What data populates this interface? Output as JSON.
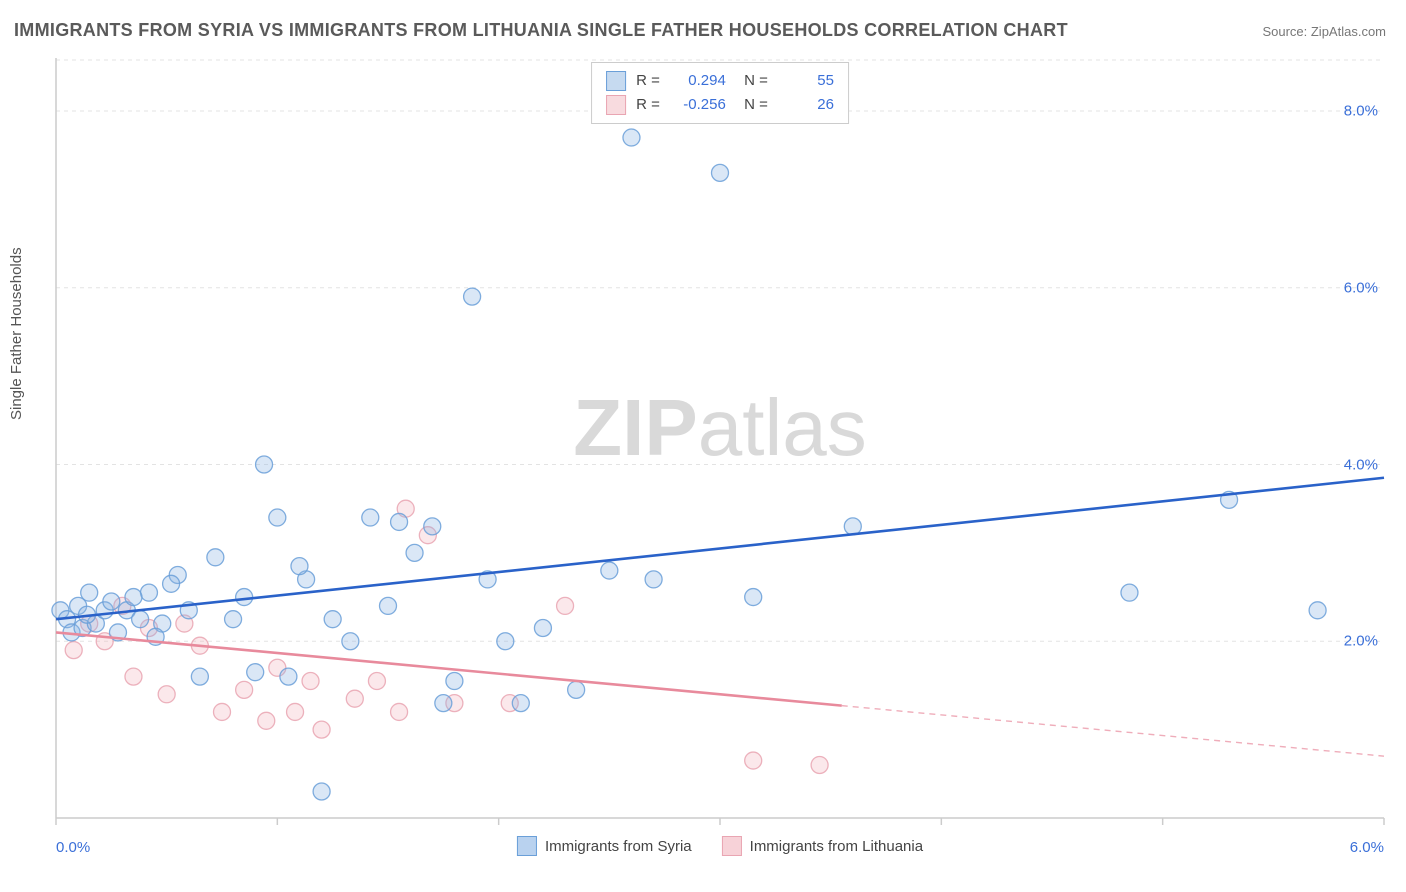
{
  "title": "IMMIGRANTS FROM SYRIA VS IMMIGRANTS FROM LITHUANIA SINGLE FATHER HOUSEHOLDS CORRELATION CHART",
  "source": "Source: ZipAtlas.com",
  "watermark_bold": "ZIP",
  "watermark_light": "atlas",
  "ylabel": "Single Father Households",
  "chart": {
    "type": "scatter_with_regression",
    "background_color": "#ffffff",
    "grid_color": "#e3e3e3",
    "axis_color": "#cccccc",
    "tick_color": "#cccccc",
    "label_color": "#3a6fd8",
    "label_fontsize": 15,
    "xlim": [
      0.0,
      6.0
    ],
    "ylim": [
      0.0,
      8.6
    ],
    "xticks": [
      0.0,
      1.0,
      2.0,
      3.0,
      4.0,
      5.0,
      6.0
    ],
    "xtick_labels": [
      "0.0%",
      "",
      "",
      "",
      "",
      "",
      "6.0%"
    ],
    "yticks": [
      2.0,
      4.0,
      6.0,
      8.0
    ],
    "ytick_labels": [
      "2.0%",
      "4.0%",
      "6.0%",
      "8.0%"
    ],
    "marker_radius": 8.5,
    "marker_fill_opacity": 0.32,
    "marker_stroke_opacity": 0.85,
    "line_width": 2.6,
    "series": [
      {
        "name": "Immigrants from Syria",
        "color": "#8db5e2",
        "line_color": "#2a62c9",
        "stroke_color": "#6a9fd8",
        "R": "0.294",
        "N": "55",
        "points": [
          [
            0.02,
            2.35
          ],
          [
            0.05,
            2.25
          ],
          [
            0.07,
            2.1
          ],
          [
            0.1,
            2.4
          ],
          [
            0.12,
            2.15
          ],
          [
            0.15,
            2.55
          ],
          [
            0.18,
            2.2
          ],
          [
            0.22,
            2.35
          ],
          [
            0.25,
            2.45
          ],
          [
            0.28,
            2.1
          ],
          [
            0.32,
            2.35
          ],
          [
            0.38,
            2.25
          ],
          [
            0.42,
            2.55
          ],
          [
            0.48,
            2.2
          ],
          [
            0.55,
            2.75
          ],
          [
            0.6,
            2.35
          ],
          [
            0.65,
            1.6
          ],
          [
            0.72,
            2.95
          ],
          [
            0.8,
            2.25
          ],
          [
            0.85,
            2.5
          ],
          [
            0.94,
            4.0
          ],
          [
            1.0,
            3.4
          ],
          [
            1.05,
            1.6
          ],
          [
            1.13,
            2.7
          ],
          [
            1.2,
            0.3
          ],
          [
            1.25,
            2.25
          ],
          [
            1.33,
            2.0
          ],
          [
            1.42,
            3.4
          ],
          [
            1.5,
            2.4
          ],
          [
            1.62,
            3.0
          ],
          [
            1.7,
            3.3
          ],
          [
            1.75,
            1.3
          ],
          [
            1.8,
            1.55
          ],
          [
            1.88,
            5.9
          ],
          [
            1.95,
            2.7
          ],
          [
            2.03,
            2.0
          ],
          [
            2.1,
            1.3
          ],
          [
            2.2,
            2.15
          ],
          [
            2.35,
            1.45
          ],
          [
            2.5,
            2.8
          ],
          [
            2.6,
            7.7
          ],
          [
            2.7,
            2.7
          ],
          [
            3.0,
            7.3
          ],
          [
            3.15,
            2.5
          ],
          [
            3.6,
            3.3
          ],
          [
            4.85,
            2.55
          ],
          [
            5.3,
            3.6
          ],
          [
            5.7,
            2.35
          ],
          [
            0.45,
            2.05
          ],
          [
            0.52,
            2.65
          ],
          [
            0.9,
            1.65
          ],
          [
            1.55,
            3.35
          ],
          [
            1.1,
            2.85
          ],
          [
            0.35,
            2.5
          ],
          [
            0.14,
            2.3
          ]
        ],
        "regression": {
          "x1": 0.0,
          "y1": 2.25,
          "x2": 6.0,
          "y2": 3.85,
          "solid_until": 6.0
        }
      },
      {
        "name": "Immigrants from Lithuania",
        "color": "#f2b8c0",
        "line_color": "#e88a9c",
        "stroke_color": "#e9a5b2",
        "R": "-0.256",
        "N": "26",
        "points": [
          [
            0.08,
            1.9
          ],
          [
            0.15,
            2.2
          ],
          [
            0.22,
            2.0
          ],
          [
            0.35,
            1.6
          ],
          [
            0.42,
            2.15
          ],
          [
            0.5,
            1.4
          ],
          [
            0.58,
            2.2
          ],
          [
            0.65,
            1.95
          ],
          [
            0.75,
            1.2
          ],
          [
            0.85,
            1.45
          ],
          [
            0.95,
            1.1
          ],
          [
            1.0,
            1.7
          ],
          [
            1.08,
            1.2
          ],
          [
            1.15,
            1.55
          ],
          [
            1.2,
            1.0
          ],
          [
            1.35,
            1.35
          ],
          [
            1.45,
            1.55
          ],
          [
            1.55,
            1.2
          ],
          [
            1.58,
            3.5
          ],
          [
            1.68,
            3.2
          ],
          [
            1.8,
            1.3
          ],
          [
            2.05,
            1.3
          ],
          [
            2.3,
            2.4
          ],
          [
            3.15,
            0.65
          ],
          [
            3.45,
            0.6
          ],
          [
            0.3,
            2.4
          ]
        ],
        "regression": {
          "x1": 0.0,
          "y1": 2.1,
          "x2": 6.0,
          "y2": 0.7,
          "solid_until": 3.55
        }
      }
    ]
  },
  "legend_bottom": [
    {
      "label": "Immigrants from Syria",
      "fill": "#b9d2ef",
      "stroke": "#6a9fd8"
    },
    {
      "label": "Immigrants from Lithuania",
      "fill": "#f7d2d8",
      "stroke": "#e9a5b2"
    }
  ]
}
